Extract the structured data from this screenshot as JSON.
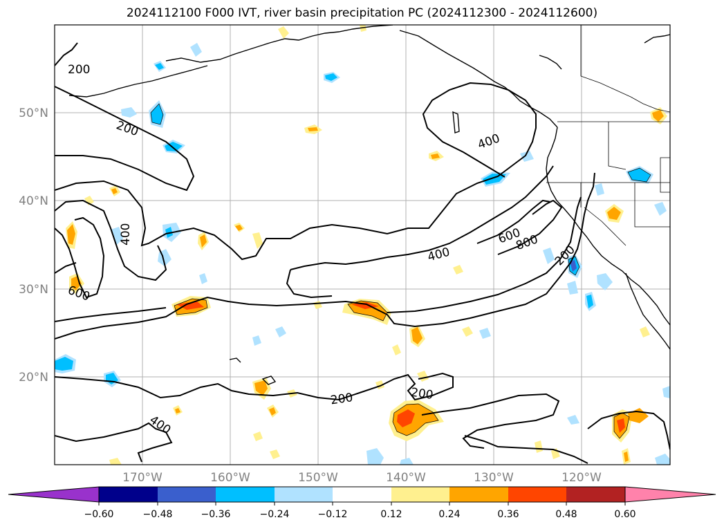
{
  "title": "2024112100 F000 IVT, river basin precipitation PC (2024112300 - 2024112600)",
  "map": {
    "lat_labels": [
      "50°N",
      "40°N",
      "30°N",
      "20°N"
    ],
    "lon_labels": [
      "170°W",
      "160°W",
      "150°W",
      "140°W",
      "130°W",
      "120°W"
    ],
    "contour_labels": [
      "200",
      "200",
      "400",
      "400",
      "600",
      "800",
      "200",
      "400",
      "600",
      "400",
      "200",
      "200",
      "400"
    ]
  },
  "colorbar": {
    "colors": [
      "#9932cc",
      "#00008b",
      "#3a5fcd",
      "#00bfff",
      "#b0e2ff",
      "#ffffff",
      "#fff08f",
      "#ffa500",
      "#ff4500",
      "#b22222",
      "#ff82ab"
    ],
    "ticks": [
      "−0.60",
      "−0.48",
      "−0.36",
      "−0.24",
      "−0.12",
      "0.12",
      "0.24",
      "0.36",
      "0.48",
      "0.60"
    ]
  }
}
